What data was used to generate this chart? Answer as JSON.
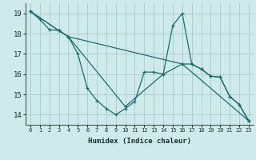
{
  "xlabel": "Humidex (Indice chaleur)",
  "background_color": "#ceeaea",
  "grid_color": "#aacece",
  "line_color": "#1a6e6e",
  "xlim": [
    -0.5,
    23.5
  ],
  "ylim": [
    13.5,
    19.5
  ],
  "yticks": [
    14,
    15,
    16,
    17,
    18,
    19
  ],
  "xticks": [
    0,
    1,
    2,
    3,
    4,
    5,
    6,
    7,
    8,
    9,
    10,
    11,
    12,
    13,
    14,
    15,
    16,
    17,
    18,
    19,
    20,
    21,
    22,
    23
  ],
  "series": [
    {
      "x": [
        0,
        1,
        2,
        3,
        4,
        5,
        6,
        7,
        8,
        9,
        10,
        11,
        12,
        13,
        14,
        15,
        16,
        17,
        18,
        19,
        20,
        21,
        22,
        23
      ],
      "y": [
        19.1,
        18.7,
        18.2,
        18.15,
        17.85,
        17.0,
        15.3,
        14.7,
        14.3,
        14.0,
        14.3,
        14.65,
        16.1,
        16.1,
        16.0,
        18.4,
        19.0,
        16.5,
        16.25,
        15.9,
        15.85,
        14.9,
        14.5,
        13.7
      ]
    },
    {
      "x": [
        0,
        3,
        4,
        10,
        14,
        16,
        17,
        18,
        19,
        20,
        21,
        22,
        23
      ],
      "y": [
        19.1,
        18.15,
        17.85,
        14.4,
        16.0,
        16.5,
        16.5,
        16.25,
        15.9,
        15.85,
        14.9,
        14.5,
        13.7
      ]
    },
    {
      "x": [
        0,
        3,
        4,
        16,
        23
      ],
      "y": [
        19.1,
        18.15,
        17.85,
        16.5,
        13.7
      ]
    }
  ]
}
